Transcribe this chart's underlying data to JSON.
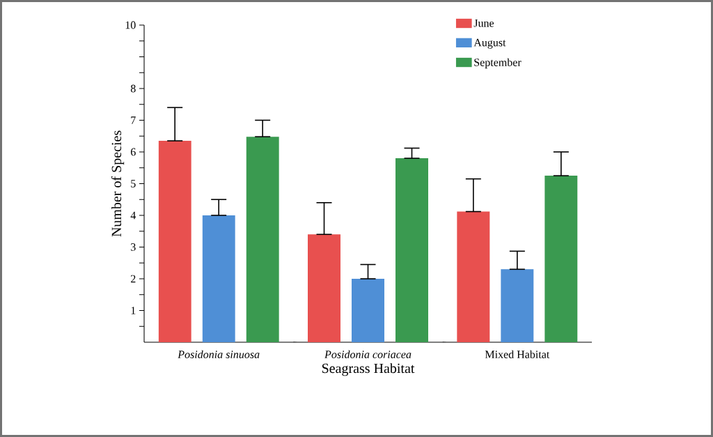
{
  "chart_data": {
    "type": "bar",
    "xlabel": "Seagrass Habitat",
    "ylabel": "Number of Species",
    "categories": [
      "*Posidonia sinuosa*",
      "*Posidonia coriacea*",
      "Mixed Habitat"
    ],
    "series": [
      {
        "name": "June",
        "color": "#e8504f",
        "values": [
          6.35,
          3.4,
          4.12
        ],
        "errors": [
          [
            6.35,
            7.4
          ],
          [
            3.4,
            4.4
          ],
          [
            4.12,
            5.15
          ]
        ]
      },
      {
        "name": "August",
        "color": "#4f8fd6",
        "values": [
          4.0,
          2.0,
          2.3
        ],
        "errors": [
          [
            4.0,
            4.5
          ],
          [
            2.0,
            2.45
          ],
          [
            2.3,
            2.87
          ]
        ]
      },
      {
        "name": "September",
        "color": "#3a9a50",
        "values": [
          6.48,
          5.8,
          5.25
        ],
        "errors": [
          [
            6.48,
            7.0
          ],
          [
            5.8,
            6.12
          ],
          [
            5.25,
            6.0
          ]
        ]
      }
    ],
    "ylim": [
      0,
      10
    ],
    "yticks": [
      {
        "value": 0.5,
        "label": null
      },
      1,
      {
        "value": 1.5,
        "label": null
      },
      2,
      {
        "value": 2.5,
        "label": null
      },
      3,
      {
        "value": 3.5,
        "label": null
      },
      4,
      {
        "value": 4.5,
        "label": null
      },
      5,
      {
        "value": 5.5,
        "label": null
      },
      6,
      {
        "value": 6.5,
        "label": null
      },
      7,
      {
        "value": 7.5,
        "label": null
      },
      8,
      {
        "value": 8.5,
        "label": null
      },
      {
        "value": 9,
        "label": null
      },
      {
        "value": 9.5,
        "label": null
      },
      10
    ],
    "legend": "top right",
    "grid": false
  }
}
